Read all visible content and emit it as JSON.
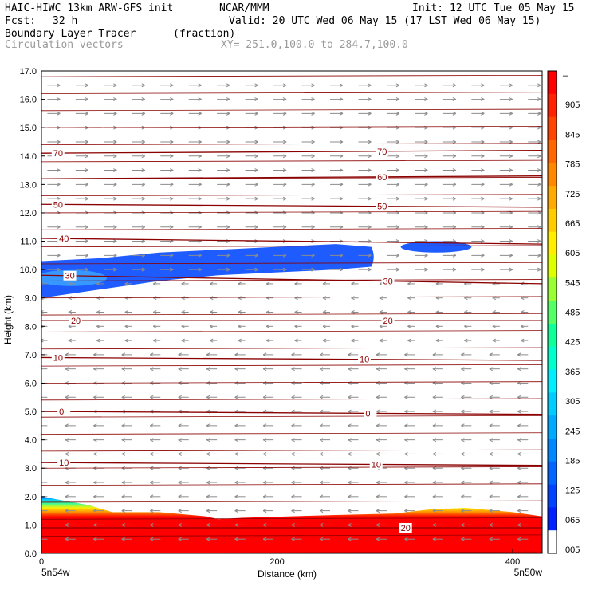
{
  "header": {
    "model": "HAIC-HIWC 13km ARW-GFS init",
    "org": "NCAR/MMM",
    "init": "Init: 12 UTC Tue 05 May 15",
    "fcst_label": "Fcst:",
    "fcst_value": "32 h",
    "valid": "Valid: 20 UTC Wed 06 May 15 (17 LST Wed 06 May 15)",
    "field": "Boundary Layer Tracer",
    "units": "(fraction)",
    "field2": "Circulation vectors",
    "xy": "XY= 251.0,100.0 to 284.7,100.0"
  },
  "colors": {
    "frame": "#000000",
    "isotherm": "#8b0000",
    "vector": "#8c8c8c",
    "tracer_scale": [
      "#ffffff",
      "#ff0000",
      "#ff2200",
      "#ff4400",
      "#ff6600",
      "#ff8800",
      "#ffaa00",
      "#ffcc00",
      "#ffee00",
      "#ddff00",
      "#99ff33",
      "#55ff66",
      "#11ff99",
      "#00ffcc",
      "#00eeff",
      "#00ccff",
      "#00aaff",
      "#0088ff",
      "#0066ff",
      "#0044ff",
      "#0022ff"
    ]
  },
  "chart_data": {
    "type": "contour",
    "xlabel": "Distance (km)",
    "ylabel": "Height (km)",
    "xlim": [
      0,
      425
    ],
    "ylim": [
      0,
      17
    ],
    "x_ticks": [
      "0",
      "200",
      "400"
    ],
    "x_tick_values": [
      0,
      200,
      400
    ],
    "y_ticks": [
      "0.0",
      "1.0",
      "2.0",
      "3.0",
      "4.0",
      "5.0",
      "6.0",
      "7.0",
      "8.0",
      "9.0",
      "10.0",
      "11.0",
      "12.0",
      "13.0",
      "14.0",
      "15.0",
      "16.0",
      "17.0"
    ],
    "x_end_labels": [
      "5n54w",
      "5n50w"
    ],
    "colorbar_labels": [
      "–",
      ".905",
      ".845",
      ".785",
      ".725",
      ".665",
      ".605",
      ".545",
      ".485",
      ".425",
      ".365",
      ".305",
      ".245",
      ".185",
      ".125",
      ".065",
      ".005"
    ],
    "isotherms": [
      {
        "label": "70",
        "y_left": 14.1,
        "y_right": 14.2,
        "label_x": [
          10,
          285
        ]
      },
      {
        "label": "60",
        "y_left": 13.2,
        "y_right": 13.3,
        "label_x": [
          285
        ]
      },
      {
        "label": "50",
        "y_left": 12.3,
        "y_right": 12.2,
        "label_x": [
          10,
          285
        ]
      },
      {
        "label": "40",
        "y_left": 11.1,
        "y_right": 10.9,
        "label_x": [
          15
        ]
      },
      {
        "label": "30",
        "y_left": 9.8,
        "y_right": 9.5,
        "label_x": [
          20,
          290
        ]
      },
      {
        "label": "20",
        "y_left": 8.2,
        "y_right": 8.2,
        "label_x": [
          25,
          290
        ]
      },
      {
        "label": "10",
        "y_left": 6.9,
        "y_right": 6.8,
        "label_x": [
          10,
          270
        ]
      },
      {
        "label": "0",
        "y_left": 5.0,
        "y_right": 4.9,
        "label_x": [
          15,
          275
        ]
      },
      {
        "label": "10",
        "y_left": 3.2,
        "y_right": 3.1,
        "label_x": [
          15,
          280
        ]
      },
      {
        "label": "20",
        "y_left": 0.9,
        "y_right": 0.9,
        "label_x": [
          305
        ]
      }
    ],
    "tracer_pbl_top": {
      "x": [
        0,
        40,
        60,
        100,
        140,
        150,
        170,
        250,
        300,
        330,
        360,
        400,
        425
      ],
      "y": [
        2.0,
        1.7,
        1.45,
        1.45,
        1.3,
        1.2,
        1.25,
        1.35,
        1.4,
        1.55,
        1.6,
        1.45,
        1.3
      ]
    },
    "upper_tracer_layer": {
      "x": [
        0,
        50,
        100,
        150,
        200,
        250,
        280
      ],
      "top": [
        10.3,
        10.4,
        10.6,
        10.7,
        10.8,
        10.9,
        10.8
      ],
      "bottom": [
        9.0,
        9.3,
        9.6,
        9.8,
        9.9,
        10.0,
        10.1
      ]
    },
    "small_cell": {
      "x": [
        305,
        365
      ],
      "top": 11.0,
      "bottom": 10.6
    }
  }
}
